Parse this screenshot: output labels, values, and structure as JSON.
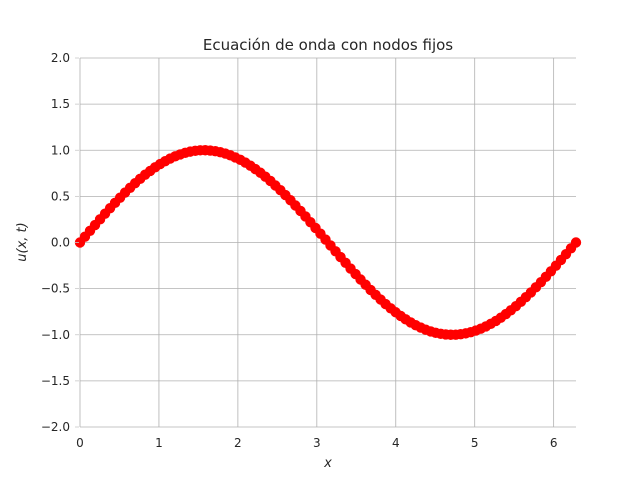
{
  "chart_data": {
    "type": "scatter",
    "title": "Ecuación de onda con nodos fijos",
    "xlabel": "x",
    "ylabel": "u(x, t)",
    "xlim": [
      0,
      6.283185307
    ],
    "ylim": [
      -2.0,
      2.0
    ],
    "grid": true,
    "x_ticks": [
      {
        "value": 0,
        "label": "0"
      },
      {
        "value": 1,
        "label": "1"
      },
      {
        "value": 2,
        "label": "2"
      },
      {
        "value": 3,
        "label": "3"
      },
      {
        "value": 4,
        "label": "4"
      },
      {
        "value": 5,
        "label": "5"
      },
      {
        "value": 6,
        "label": "6"
      }
    ],
    "y_ticks": [
      {
        "value": 2.0,
        "label": "2.0"
      },
      {
        "value": 1.5,
        "label": "1.5"
      },
      {
        "value": 1.0,
        "label": "1.0"
      },
      {
        "value": 0.5,
        "label": "0.5"
      },
      {
        "value": 0.0,
        "label": "0.0"
      },
      {
        "value": -0.5,
        "label": "−0.5"
      },
      {
        "value": -1.0,
        "label": "−1.0"
      },
      {
        "value": -1.5,
        "label": "−1.5"
      },
      {
        "value": -2.0,
        "label": "−2.0"
      }
    ],
    "series": [
      {
        "color": "#ff0000",
        "x": [
          0.0,
          0.063,
          0.127,
          0.19,
          0.254,
          0.317,
          0.381,
          0.444,
          0.508,
          0.571,
          0.635,
          0.698,
          0.762,
          0.825,
          0.889,
          0.952,
          1.015,
          1.079,
          1.142,
          1.206,
          1.269,
          1.333,
          1.396,
          1.46,
          1.523,
          1.587,
          1.65,
          1.714,
          1.777,
          1.841,
          1.904,
          1.967,
          2.031,
          2.094,
          2.158,
          2.221,
          2.285,
          2.348,
          2.412,
          2.475,
          2.539,
          2.602,
          2.666,
          2.729,
          2.793,
          2.856,
          2.919,
          2.983,
          3.046,
          3.11,
          3.173,
          3.237,
          3.3,
          3.364,
          3.427,
          3.491,
          3.554,
          3.618,
          3.681,
          3.744,
          3.808,
          3.871,
          3.935,
          3.998,
          4.062,
          4.125,
          4.189,
          4.252,
          4.316,
          4.379,
          4.443,
          4.506,
          4.57,
          4.633,
          4.696,
          4.76,
          4.823,
          4.887,
          4.95,
          5.014,
          5.077,
          5.141,
          5.204,
          5.268,
          5.331,
          5.395,
          5.458,
          5.522,
          5.585,
          5.648,
          5.712,
          5.775,
          5.839,
          5.902,
          5.966,
          6.029,
          6.093,
          6.156,
          6.22,
          6.283
        ],
        "y": [
          0.0,
          0.063,
          0.127,
          0.189,
          0.251,
          0.312,
          0.372,
          0.43,
          0.486,
          0.541,
          0.593,
          0.643,
          0.69,
          0.735,
          0.776,
          0.815,
          0.85,
          0.881,
          0.91,
          0.934,
          0.955,
          0.972,
          0.985,
          0.994,
          0.999,
          1.0,
          0.997,
          0.99,
          0.979,
          0.964,
          0.945,
          0.922,
          0.896,
          0.866,
          0.833,
          0.796,
          0.756,
          0.713,
          0.667,
          0.618,
          0.567,
          0.514,
          0.458,
          0.401,
          0.342,
          0.282,
          0.22,
          0.158,
          0.095,
          0.032,
          -0.032,
          -0.095,
          -0.158,
          -0.22,
          -0.282,
          -0.342,
          -0.401,
          -0.458,
          -0.514,
          -0.567,
          -0.618,
          -0.667,
          -0.713,
          -0.756,
          -0.796,
          -0.833,
          -0.866,
          -0.896,
          -0.922,
          -0.945,
          -0.964,
          -0.979,
          -0.99,
          -0.997,
          -1.0,
          -0.999,
          -0.994,
          -0.985,
          -0.972,
          -0.955,
          -0.934,
          -0.91,
          -0.881,
          -0.85,
          -0.815,
          -0.776,
          -0.735,
          -0.69,
          -0.643,
          -0.593,
          -0.541,
          -0.486,
          -0.43,
          -0.372,
          -0.312,
          -0.251,
          -0.189,
          -0.127,
          -0.063,
          0.0
        ]
      }
    ]
  }
}
